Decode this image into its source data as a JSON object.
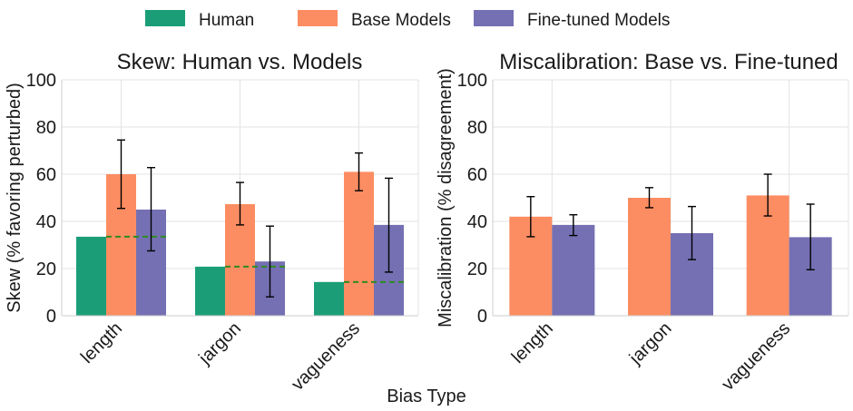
{
  "legend": {
    "items": [
      {
        "label": "Human",
        "color": "#1b9e77"
      },
      {
        "label": "Base Models",
        "color": "#fc8d62"
      },
      {
        "label": "Fine-tuned Models",
        "color": "#7570b3"
      }
    ]
  },
  "shared_xlabel": "Bias Type",
  "chart_data": [
    {
      "type": "bar",
      "title": "Skew: Human vs. Models",
      "xlabel": "",
      "ylabel": "Skew (% favoring perturbed)",
      "ylim": [
        0,
        100
      ],
      "yticks": [
        0,
        20,
        40,
        60,
        80,
        100
      ],
      "grid": true,
      "categories": [
        "length",
        "jargon",
        "vagueness"
      ],
      "series": [
        {
          "name": "Human",
          "color": "#1b9e77",
          "values": [
            33.5,
            20.8,
            14.3
          ]
        },
        {
          "name": "Base Models",
          "color": "#fc8d62",
          "values": [
            60.0,
            47.3,
            61.0
          ],
          "err_low": [
            45.5,
            38.5,
            53.0
          ],
          "err_high": [
            74.5,
            56.5,
            69.0
          ]
        },
        {
          "name": "Fine-tuned Models",
          "color": "#7570b3",
          "values": [
            45.0,
            23.0,
            38.5
          ],
          "err_low": [
            27.5,
            8.0,
            18.5
          ],
          "err_high": [
            62.8,
            38.0,
            58.3
          ]
        }
      ],
      "reference_lines": {
        "name": "Human baseline",
        "color": "#2e8b20",
        "style": "dashed",
        "values": [
          33.5,
          20.8,
          14.3
        ]
      }
    },
    {
      "type": "bar",
      "title": "Miscalibration: Base vs. Fine-tuned",
      "xlabel": "",
      "ylabel": "Miscalibration (% disagreement)",
      "ylim": [
        0,
        100
      ],
      "yticks": [
        0,
        20,
        40,
        60,
        80,
        100
      ],
      "grid": true,
      "categories": [
        "length",
        "jargon",
        "vagueness"
      ],
      "series": [
        {
          "name": "Base Models",
          "color": "#fc8d62",
          "values": [
            42.0,
            50.0,
            51.0
          ],
          "err_low": [
            33.5,
            45.8,
            42.3
          ],
          "err_high": [
            50.5,
            54.3,
            60.0
          ]
        },
        {
          "name": "Fine-tuned Models",
          "color": "#7570b3",
          "values": [
            38.5,
            35.0,
            33.3
          ],
          "err_low": [
            34.0,
            23.8,
            19.5
          ],
          "err_high": [
            42.8,
            46.3,
            47.3
          ]
        }
      ]
    }
  ]
}
